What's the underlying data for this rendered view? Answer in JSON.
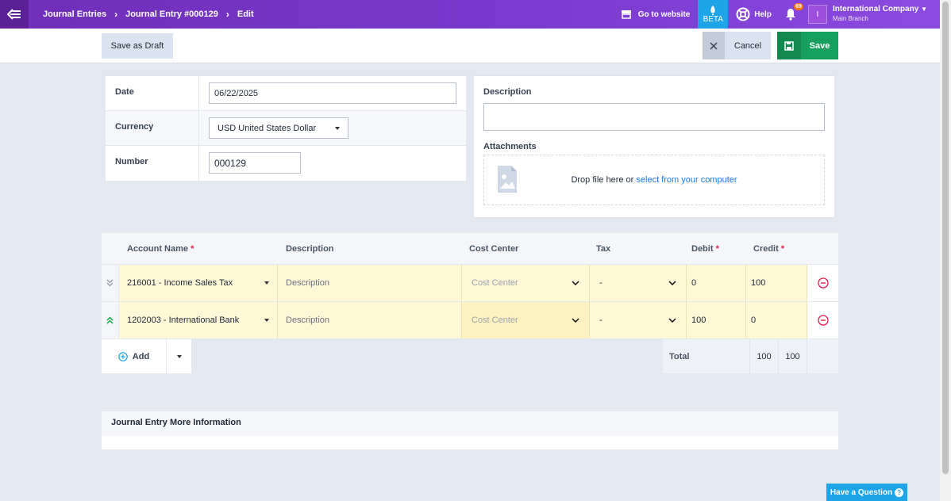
{
  "breadcrumb": {
    "items": [
      "Journal Entries",
      "Journal Entry #000129",
      "Edit"
    ]
  },
  "topbar": {
    "go_to_website": "Go to website",
    "beta": "BETA",
    "help": "Help",
    "notifications_count": "69",
    "avatar_initial": "I",
    "company_name": "International Company",
    "branch_name": "Main Branch"
  },
  "actions": {
    "save_draft": "Save as Draft",
    "cancel": "Cancel",
    "save": "Save"
  },
  "form": {
    "date_label": "Date",
    "date_value": "06/22/2025",
    "currency_label": "Currency",
    "currency_value": "USD United States Dollar",
    "number_label": "Number",
    "number_value": "000129"
  },
  "description_panel": {
    "description_label": "Description",
    "description_value": "",
    "attachments_label": "Attachments",
    "drop_text": "Drop file here or ",
    "drop_link": "select from your computer"
  },
  "table": {
    "headers": {
      "account_name": "Account Name",
      "description": "Description",
      "cost_center": "Cost Center",
      "tax": "Tax",
      "debit": "Debit",
      "credit": "Credit",
      "required_mark": "*"
    },
    "rows": [
      {
        "account": "216001 - Income Sales Tax",
        "description": "Description",
        "cost_center": "Cost Center",
        "tax": "-",
        "debit": "0",
        "credit": "100"
      },
      {
        "account": "1202003 - International Bank",
        "description": "Description",
        "cost_center": "Cost Center",
        "tax": "-",
        "debit": "100",
        "credit": "0"
      }
    ],
    "add_label": "Add",
    "total_label": "Total",
    "total_debit": "100",
    "total_credit": "100"
  },
  "more_info": {
    "title": "Journal Entry More Information"
  },
  "help_widget": {
    "label": "Have a Question",
    "icon": "?"
  },
  "colors": {
    "topbar": "#7b3bd0",
    "save": "#17a05d",
    "beta": "#1ea4e8",
    "required": "#e11d48",
    "row_highlight": "#fff8d6"
  }
}
